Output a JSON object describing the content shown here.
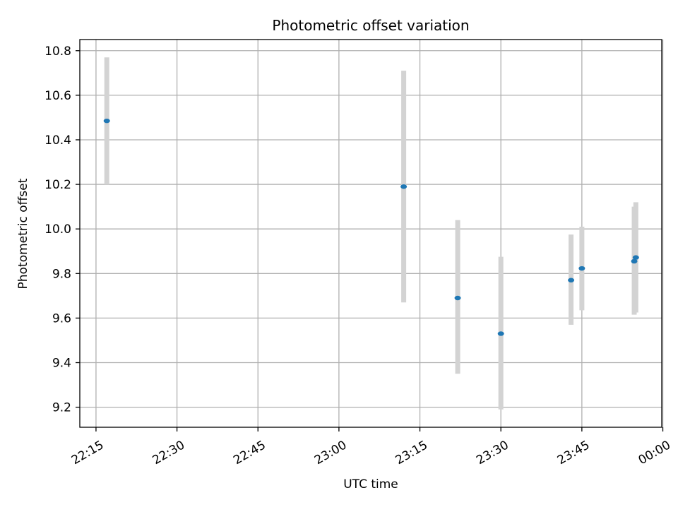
{
  "chart_data": {
    "type": "scatter",
    "title": "Photometric offset variation",
    "xlabel": "UTC time",
    "ylabel": "Photometric offset",
    "x_ticks": [
      {
        "value": "22:15",
        "label": "22:15"
      },
      {
        "value": "22:30",
        "label": "22:30"
      },
      {
        "value": "22:45",
        "label": "22:45"
      },
      {
        "value": "23:00",
        "label": "23:00"
      },
      {
        "value": "23:15",
        "label": "23:15"
      },
      {
        "value": "23:30",
        "label": "23:30"
      },
      {
        "value": "23:45",
        "label": "23:45"
      },
      {
        "value": "00:00",
        "label": "00:00"
      }
    ],
    "y_ticks": [
      "9.2",
      "9.4",
      "9.6",
      "9.8",
      "10.0",
      "10.2",
      "10.4",
      "10.6",
      "10.8"
    ],
    "xlim": [
      "22:12",
      "23:59.8"
    ],
    "ylim": [
      9.11,
      10.85
    ],
    "grid": true,
    "colors": {
      "point": "#1f77b4",
      "errorbar": "#d3d3d3",
      "grid": "#b0b0b0",
      "axes": "#000000"
    },
    "points": [
      {
        "x": "22:17",
        "y": 10.485,
        "ylow": 10.2,
        "yhigh": 10.77
      },
      {
        "x": "23:12",
        "y": 10.19,
        "ylow": 9.67,
        "yhigh": 10.71
      },
      {
        "x": "23:22",
        "y": 9.69,
        "ylow": 9.35,
        "yhigh": 10.04
      },
      {
        "x": "23:30",
        "y": 9.53,
        "ylow": 9.19,
        "yhigh": 9.875
      },
      {
        "x": "23:43",
        "y": 9.77,
        "ylow": 9.57,
        "yhigh": 9.975
      },
      {
        "x": "23:45",
        "y": 9.823,
        "ylow": 9.635,
        "yhigh": 10.01
      },
      {
        "x": "23:54.7",
        "y": 9.855,
        "ylow": 9.615,
        "yhigh": 10.1
      },
      {
        "x": "23:55",
        "y": 9.872,
        "ylow": 9.625,
        "yhigh": 10.12
      }
    ]
  }
}
